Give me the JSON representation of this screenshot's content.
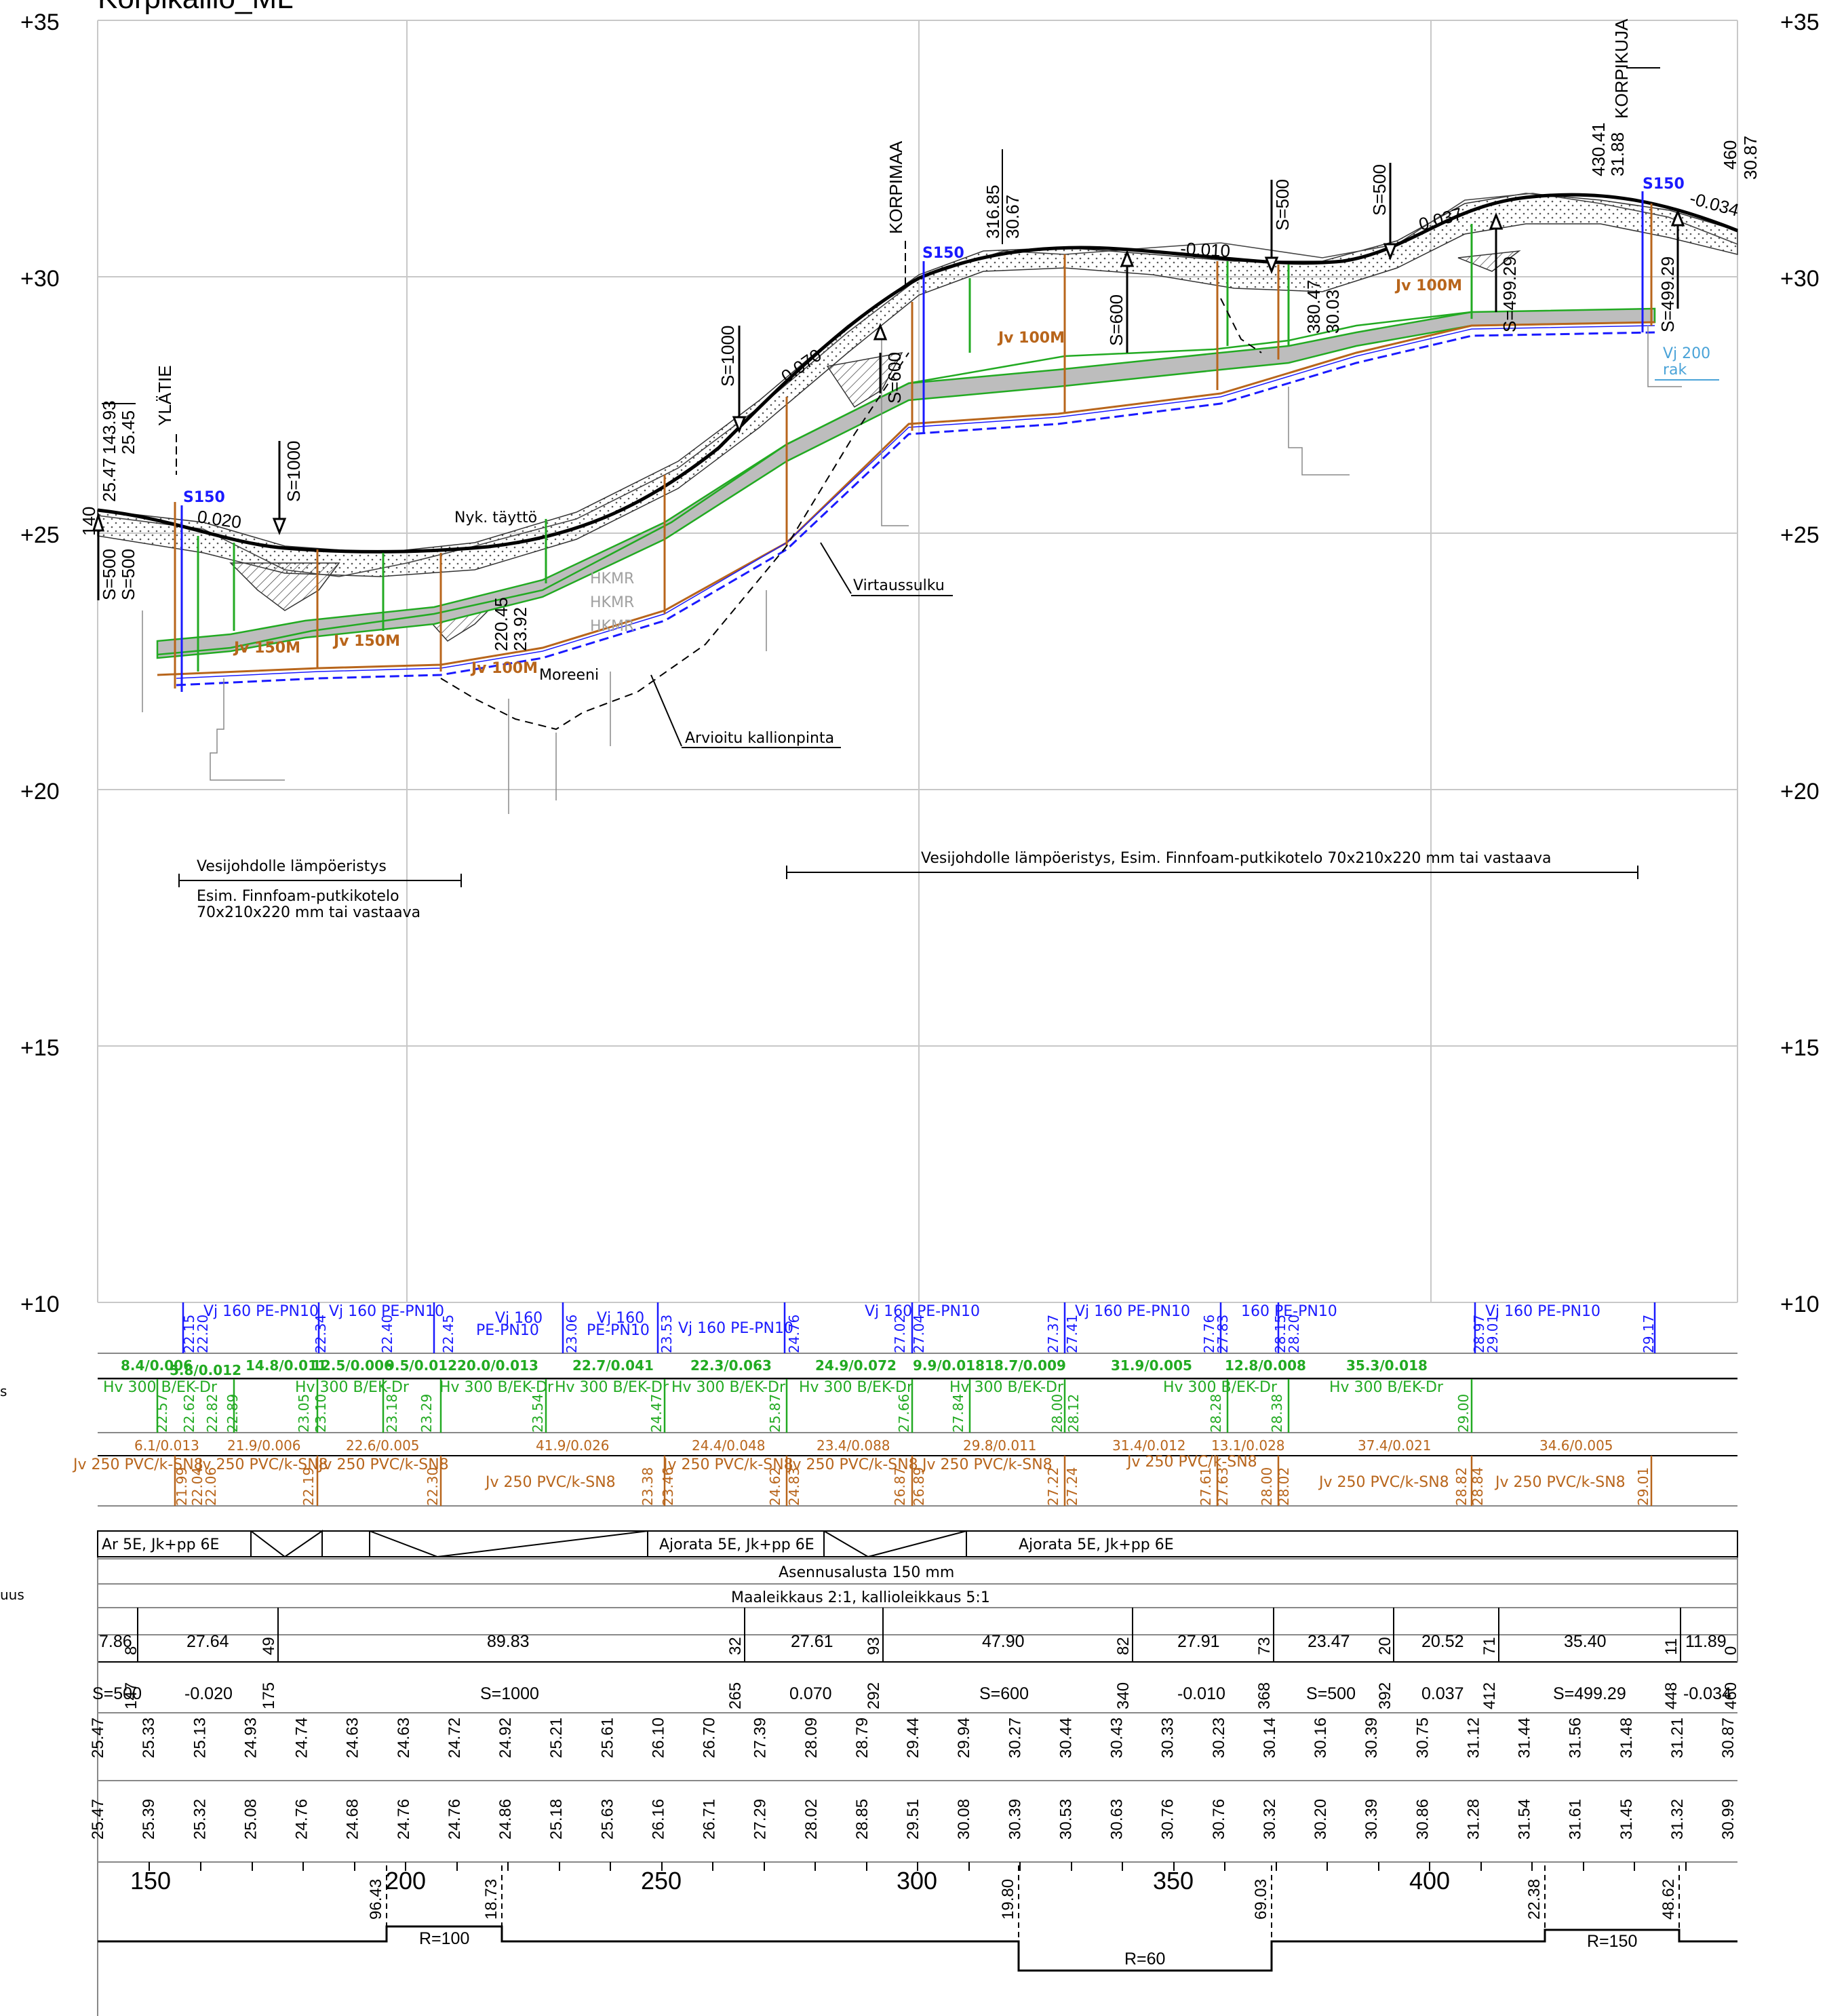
{
  "title": "Korpikallio_ML",
  "elevation_labels": [
    "+35",
    "+30",
    "+25",
    "+20",
    "+15",
    "+10"
  ],
  "clipped_left_labels": [
    "s",
    "uus"
  ],
  "colors": {
    "grid": "#c8c8c8",
    "surface": "#000000",
    "water": "#1a1aff",
    "sewer": "#b8651b",
    "storm": "#22aa22",
    "grey_fill": "#bdbdbd",
    "light_blue": "#4aa3d8",
    "hkmr_grey": "#a0a0a0"
  },
  "top_annotations": {
    "start_label_1": "140",
    "start_label_2": "25.47",
    "start_label_3": "143.93",
    "start_label_4": "25.45",
    "ylatie": "YLÄTIE",
    "korpimaa": "KORPIMAA",
    "korpikuja": "KORPIKUJA",
    "pt_316": "316.85",
    "pt_316_z": "30.67",
    "pt_380": "380.47",
    "pt_380_z": "30.03",
    "pt_430": "430.41",
    "pt_430_z": "31.88",
    "pt_460": "460",
    "pt_460_z": "30.87",
    "pt_220": "220.45",
    "pt_220_z": "23.92"
  },
  "curves": {
    "s500a": "S=500",
    "s500b": "S=500",
    "s1000a": "S=1000",
    "s1000b": "S=1000",
    "s600a": "S=600",
    "s600b": "S=600",
    "s500c": "S=500",
    "s500d": "S=500",
    "s499": "S=499.29",
    "s499b": "S=499.29"
  },
  "slopes": {
    "g1": "0.020",
    "g2": "0.070",
    "g3": "-0.010",
    "g4": "0.037",
    "g5": "-0.034"
  },
  "labels": {
    "s150": "S150",
    "nyk_taytto": "Nyk. täyttö",
    "moreeni": "Moreeni",
    "virtaussulku": "Virtaussulku",
    "arvioitu": "Arvioitu kallionpinta",
    "jv150m": "Jv 150M",
    "jv100m": "Jv 100M",
    "hkmr": "HKMR",
    "vj200": "Vj 200",
    "rak": "rak",
    "insulation_left_1": "Vesijohdolle lämpöeristys",
    "insulation_left_2": "Esim. Finnfoam-putkikotelo",
    "insulation_left_3": "70x210x220 mm tai vastaava",
    "insulation_right": "Vesijohdolle lämpöeristys, Esim. Finnfoam-putkikotelo 70x210x220 mm tai vastaava"
  },
  "band_vj": {
    "items": [
      "Vj 160 PE-PN10",
      "Vj 160 PE-PN10",
      "Vj 160",
      "PE-PN10",
      "Vj 160",
      "PE-PN10",
      "Vj 160 PE-PN10",
      "Vj 160 PE-PN10",
      "Vj 160 PE-PN10",
      "160 PE-PN10",
      "Vj 160 PE-PN10"
    ],
    "elevations": [
      "22.15",
      "22.20",
      "22.34",
      "22.40",
      "22.45",
      "23.06",
      "23.53",
      "24.76",
      "27.02",
      "27.04",
      "27.37",
      "27.41",
      "27.76",
      "27.83",
      "28.15",
      "28.20",
      "28.97",
      "29.01",
      "29.17"
    ]
  },
  "band_hv_slopes": [
    "8.4/0.006",
    "5.8/0.012",
    "14.8/0.011",
    "12.5/0.006",
    "9.5/0.012",
    "20.0/0.013",
    "22.7/0.041",
    "22.3/0.063",
    "24.9/0.072",
    "9.9/0.018",
    "18.7/0.009",
    "31.9/0.005",
    "12.8/0.008",
    "35.3/0.018"
  ],
  "band_hv": {
    "items": [
      "Hv 300 B/EK-Dr",
      "Hv 300 B/EK-Dr",
      "Hv 300 B/EK-Dr",
      "Hv 300 B/EK-Dr",
      "Hv 300 B/EK-Dr",
      "Hv 300 B/EK-Dr",
      "Hv 300 B/EK-Dr",
      "Hv 300 B/EK-Dr",
      "Hv 300 B/EK-Dr"
    ],
    "elevations": [
      "22.57",
      "22.62",
      "22.82",
      "22.89",
      "23.05",
      "23.10",
      "23.18",
      "23.29",
      "23.54",
      "24.47",
      "25.87",
      "27.66",
      "27.84",
      "28.00",
      "28.12",
      "28.28",
      "28.38",
      "29.00"
    ]
  },
  "band_jv_slopes": [
    "6.1/0.013",
    "21.9/0.006",
    "22.6/0.005",
    "41.9/0.026",
    "24.4/0.048",
    "23.4/0.088",
    "29.8/0.011",
    "31.4/0.012",
    "13.1/0.028",
    "37.4/0.021",
    "34.6/0.005"
  ],
  "band_jv": {
    "items": [
      "Jv 250 PVC/k-SN8",
      "Jv 250 PVC/k-SN8",
      "Jv 250 PVC/k-SN8",
      "Jv 250 PVC/k-SN8",
      "Jv 250 PVC/k-SN8",
      "Jv 250 PVC/k-SN8",
      "Jv 250 PVC/k-SN8",
      "Jv 250 PVC/k-SN8",
      "Jv 250 PVC/k-SN8",
      "Jv 250 PVC/k-SN8",
      "Jv 250 PVC/k-SN8"
    ],
    "elevations": [
      "21.99",
      "22.04",
      "22.06",
      "22.19",
      "22.30",
      "23.38",
      "23.46",
      "24.62",
      "24.83",
      "26.87",
      "26.89",
      "27.22",
      "27.24",
      "27.61",
      "27.63",
      "28.00",
      "28.02",
      "28.82",
      "28.84",
      "29.01"
    ]
  },
  "band_road": {
    "seg1": "Ar 5E, Jk+pp 6E",
    "seg2": "Ajorata 5E, Jk+pp 6E",
    "seg3": "Ajorata 5E, Jk+pp 6E",
    "asennus": "Asennusalusta 150 mm",
    "maaleikkaus": "Maaleikkaus 2:1, kallioleikkaus 5:1"
  },
  "band_profile": {
    "lengths": [
      "7.86",
      "27.64",
      "89.83",
      "27.61",
      "47.90",
      "27.91",
      "23.47",
      "20.52",
      "35.40",
      "11.89"
    ],
    "stations_top": [
      "8",
      "49",
      "32",
      "93",
      "82",
      "73",
      "20",
      "71",
      "11",
      "0"
    ],
    "stations_bot": [
      "147",
      "175",
      "265",
      "292",
      "340",
      "368",
      "392",
      "412",
      "448",
      "460"
    ],
    "bottom": [
      "S=500",
      "-0.020",
      "S=1000",
      "0.070",
      "S=600",
      "-0.010",
      "S=500",
      "0.037",
      "S=499.29",
      "-0.034"
    ]
  },
  "band_design_elev": [
    "25.47",
    "25.33",
    "25.13",
    "24.93",
    "24.74",
    "24.63",
    "24.63",
    "24.72",
    "24.92",
    "25.21",
    "25.61",
    "26.10",
    "26.70",
    "27.39",
    "28.09",
    "28.79",
    "29.44",
    "29.94",
    "30.27",
    "30.44",
    "30.43",
    "30.33",
    "30.23",
    "30.14",
    "30.16",
    "30.39",
    "30.75",
    "31.12",
    "31.44",
    "31.56",
    "31.48",
    "31.21",
    "30.87"
  ],
  "band_ground_elev": [
    "25.47",
    "25.39",
    "25.32",
    "25.08",
    "24.76",
    "24.68",
    "24.76",
    "24.76",
    "24.86",
    "25.18",
    "25.63",
    "26.16",
    "26.71",
    "27.29",
    "28.02",
    "28.85",
    "29.51",
    "30.08",
    "30.39",
    "30.53",
    "30.63",
    "30.76",
    "30.76",
    "30.32",
    "30.20",
    "30.39",
    "30.86",
    "31.28",
    "31.54",
    "31.61",
    "31.45",
    "31.32",
    "30.99"
  ],
  "stations": [
    "150",
    "200",
    "250",
    "300",
    "350",
    "400"
  ],
  "horizontal": {
    "pts": [
      "96.43",
      "18.73",
      "19.80",
      "69.03",
      "22.38",
      "48.62"
    ],
    "radii": [
      "R=100",
      "R=60",
      "R=150"
    ]
  }
}
